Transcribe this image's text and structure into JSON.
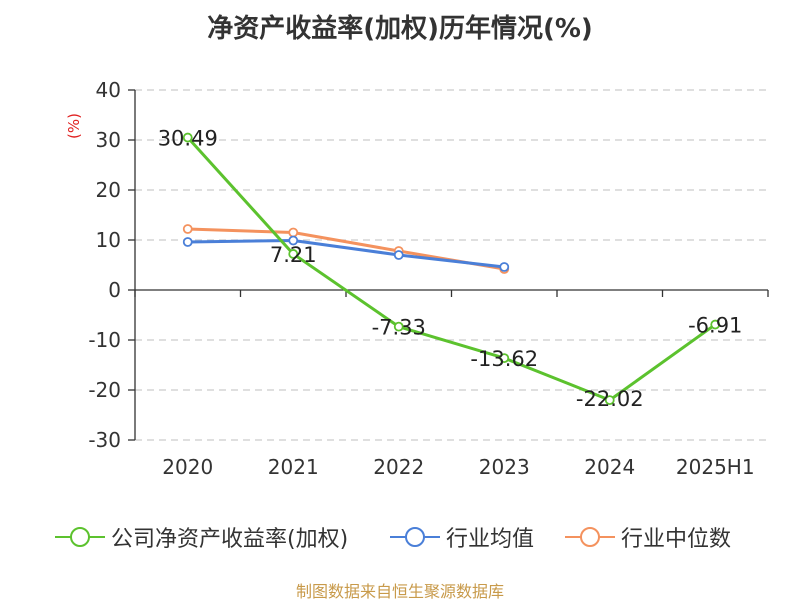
{
  "title": "净资产收益率(加权)历年情况(%)",
  "source": "制图数据来自恒生聚源数据库",
  "colors": {
    "company": "#5cc22e",
    "industry_avg": "#4a7fd8",
    "industry_median": "#f4925e",
    "axis": "#333333",
    "grid": "#cccccc",
    "unit": "#e02020"
  },
  "chart_data": {
    "type": "line",
    "title": "净资产收益率(加权)历年情况(%)",
    "ylabel": "(%)",
    "categories": [
      "2020",
      "2021",
      "2022",
      "2023",
      "2024",
      "2025H1"
    ],
    "ylim": [
      -30,
      40
    ],
    "yticks": [
      40,
      30,
      20,
      10,
      0,
      -10,
      -20,
      -30
    ],
    "grid": true,
    "legend_position": "bottom",
    "series": [
      {
        "name": "公司净资产收益率(加权)",
        "values": [
          30.49,
          7.21,
          -7.33,
          -13.62,
          -22.02,
          -6.91
        ],
        "labels": [
          "30.49",
          "7.21",
          "-7.33",
          "-13.62",
          "-22.02",
          "-6.91"
        ]
      },
      {
        "name": "行业均值",
        "values": [
          9.6,
          9.9,
          7.0,
          4.6,
          null,
          null
        ]
      },
      {
        "name": "行业中位数",
        "values": [
          12.2,
          11.5,
          7.8,
          4.2,
          null,
          null
        ]
      }
    ]
  }
}
